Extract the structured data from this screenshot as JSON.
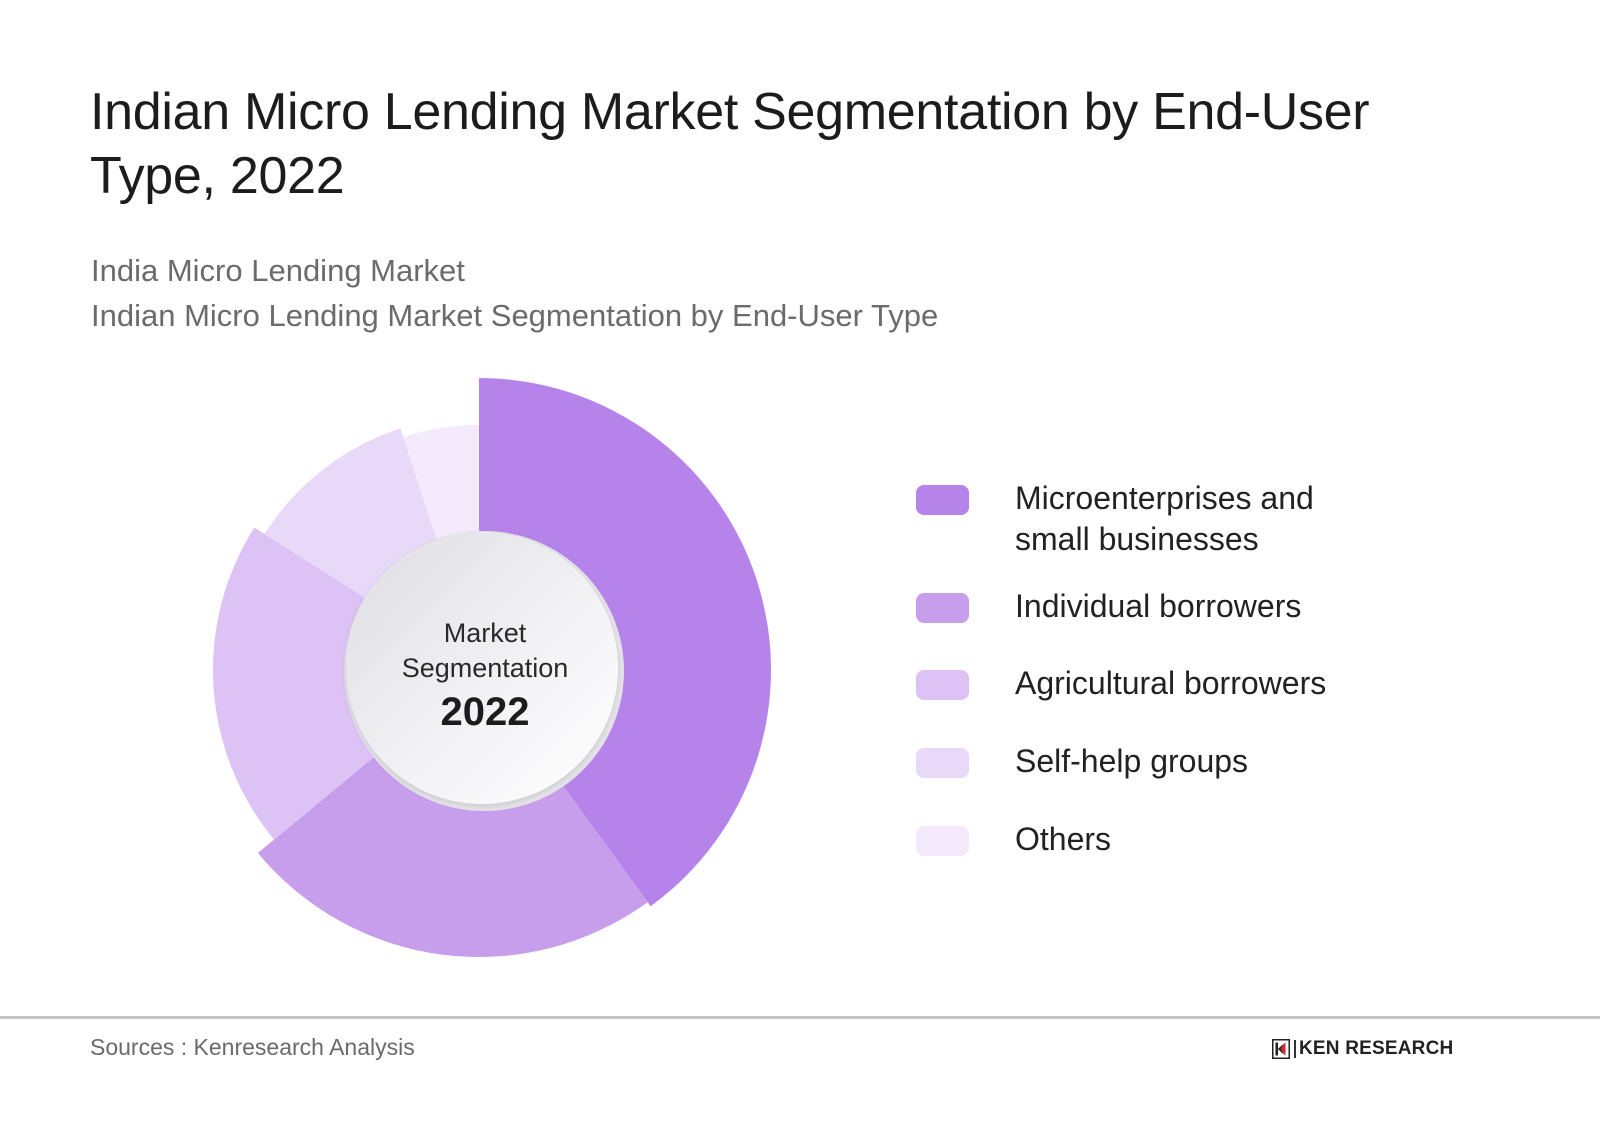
{
  "header": {
    "title": "Indian Micro Lending Market Segmentation by End-User Type, 2022",
    "subtitle_line1": "India Micro Lending Market",
    "subtitle_line2": "Indian Micro Lending Market Segmentation by End-User Type"
  },
  "center": {
    "line1": "Market",
    "line2": "Segmentation",
    "year": "2022"
  },
  "legend": [
    {
      "label": "Microenterprises and small businesses",
      "color": "#b583e9"
    },
    {
      "label": "Individual borrowers",
      "color": "#c69eec"
    },
    {
      "label": "Agricultural borrowers",
      "color": "#dcc2f5"
    },
    {
      "label": "Self-help groups",
      "color": "#e9d9f9"
    },
    {
      "label": "Others",
      "color": "#f3ebfc"
    }
  ],
  "footer": {
    "source": "Sources : Kenresearch Analysis",
    "logo_text": "KEN RESEARCH",
    "logo_mark_color": "#d0282e"
  },
  "chart_data": {
    "type": "pie",
    "subtype": "donut (variable-radius rose)",
    "title": "Indian Micro Lending Market Segmentation by End-User Type, 2022",
    "center_label": "Market Segmentation 2022",
    "categories": [
      "Microenterprises and small businesses",
      "Individual borrowers",
      "Agricultural borrowers",
      "Self-help groups",
      "Others"
    ],
    "values": [
      40,
      24,
      20,
      11,
      5
    ],
    "unit": "%",
    "colors": [
      "#b583e9",
      "#c69eec",
      "#dcc2f5",
      "#e9d9f9",
      "#f3ebfc"
    ],
    "outer_radius_px": [
      292,
      287,
      266,
      254,
      245
    ],
    "inner_radius_px": 138,
    "start_angle_deg": 0,
    "direction": "clockwise",
    "legend_position": "right",
    "source": "Kenresearch Analysis"
  }
}
